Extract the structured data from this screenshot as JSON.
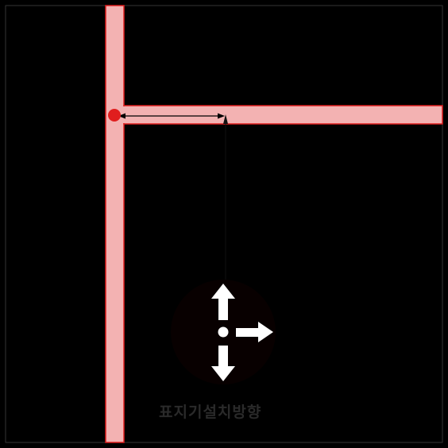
{
  "diagram": {
    "caption": "표지기설치방향",
    "road_color": "#f3b2b2",
    "road_edge_color": "#e01e1e",
    "marker_color": "#e01e1e",
    "arrow_color": "#ffffff",
    "background_color": "#000000",
    "circle_color": "#080000",
    "leader_line_color": "#111111",
    "arrows": [
      "arrow-up-icon",
      "arrow-right-icon",
      "arrow-down-icon"
    ]
  }
}
